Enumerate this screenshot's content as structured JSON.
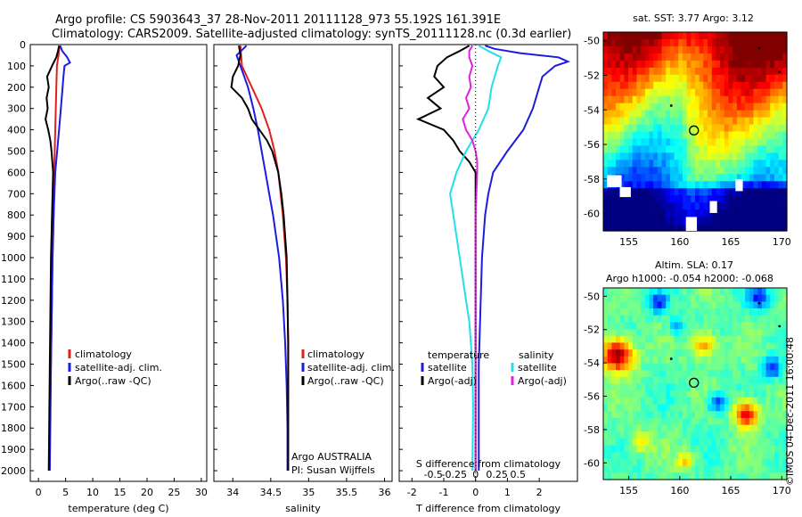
{
  "header": {
    "line1": "Argo profile: CS 5903643_37 28-Nov-2011 20111128_973 55.192S 161.391E",
    "line2": "Climatology: CARS2009. Satellite-adjusted climatology: synTS_20111128.nc (0.3d earlier)"
  },
  "colors": {
    "climatology": "#e0201c",
    "satellite": "#1c1ce0",
    "argo": "#000000",
    "salinity_sat": "#20e0e8",
    "salinity_argo": "#e020e0",
    "temp_argo": "#000000"
  },
  "chart_data": [
    {
      "type": "line",
      "id": "temperature",
      "xlabel": "temperature (deg C)",
      "ylabel": "",
      "xlim": [
        -1.5,
        31
      ],
      "ylim": [
        2050,
        0
      ],
      "xticks": [
        0,
        5,
        10,
        15,
        20,
        25,
        30
      ],
      "yticks": [
        0,
        100,
        200,
        300,
        400,
        500,
        600,
        700,
        800,
        900,
        1000,
        1100,
        1200,
        1300,
        1400,
        1500,
        1600,
        1700,
        1800,
        1900,
        2000
      ],
      "legend": [
        "climatology",
        "satellite-adj. clim.",
        "Argo(..raw -QC)"
      ],
      "series": [
        {
          "name": "climatology",
          "color": "#e0201c",
          "depth": [
            5,
            50,
            100,
            200,
            400,
            600,
            800,
            1000,
            1500,
            2000
          ],
          "values": [
            3.9,
            3.7,
            3.4,
            3.3,
            3.1,
            2.9,
            2.8,
            2.6,
            2.3,
            2.0
          ]
        },
        {
          "name": "satellite-adj. clim.",
          "color": "#1c1ce0",
          "depth": [
            5,
            30,
            60,
            85,
            100,
            150,
            250,
            400,
            600,
            800,
            1000,
            1500,
            2000
          ],
          "values": [
            4.0,
            4.4,
            5.3,
            5.8,
            4.8,
            4.6,
            4.3,
            3.8,
            3.1,
            2.8,
            2.6,
            2.3,
            2.1
          ]
        },
        {
          "name": "Argo(..raw -QC)",
          "color": "#000000",
          "depth": [
            5,
            30,
            60,
            100,
            150,
            200,
            250,
            300,
            350,
            400,
            450,
            500,
            600,
            800,
            1000,
            1500,
            2000
          ],
          "values": [
            3.8,
            3.6,
            3.3,
            2.5,
            1.6,
            1.9,
            1.5,
            1.7,
            1.3,
            1.8,
            2.2,
            2.4,
            2.7,
            2.5,
            2.3,
            2.1,
            1.9
          ]
        }
      ]
    },
    {
      "type": "line",
      "id": "salinity",
      "xlabel": "salinity",
      "xlim": [
        33.75,
        36.1
      ],
      "ylim": [
        2050,
        0
      ],
      "xticks": [
        34,
        34.5,
        35,
        35.5,
        36
      ],
      "legend": [
        "climatology",
        "satellite-adj. clim.",
        "Argo(..raw -QC)"
      ],
      "annotation": [
        "Argo AUSTRALIA",
        "PI: Susan Wijffels"
      ],
      "series": [
        {
          "name": "climatology",
          "color": "#e0201c",
          "depth": [
            5,
            100,
            200,
            300,
            400,
            500,
            600,
            700,
            800,
            900,
            1000,
            1200,
            1400,
            1600,
            1800,
            2000
          ],
          "values": [
            34.1,
            34.12,
            34.25,
            34.38,
            34.48,
            34.55,
            34.6,
            34.63,
            34.66,
            34.68,
            34.7,
            34.72,
            34.73,
            34.73,
            34.73,
            34.73
          ]
        },
        {
          "name": "satellite-adj. clim.",
          "color": "#1c1ce0",
          "depth": [
            5,
            50,
            100,
            200,
            300,
            400,
            500,
            600,
            700,
            800,
            900,
            1000,
            1200,
            1400,
            1600,
            1800,
            2000
          ],
          "values": [
            34.18,
            34.05,
            34.1,
            34.2,
            34.27,
            34.33,
            34.38,
            34.43,
            34.48,
            34.53,
            34.57,
            34.61,
            34.66,
            34.69,
            34.71,
            34.72,
            34.72
          ]
        },
        {
          "name": "Argo(..raw -QC)",
          "color": "#000000",
          "depth": [
            5,
            50,
            100,
            150,
            200,
            250,
            300,
            350,
            400,
            450,
            500,
            600,
            700,
            800,
            900,
            1000,
            1200,
            1400,
            1600,
            1800,
            2000
          ],
          "values": [
            34.08,
            34.1,
            34.07,
            34.0,
            33.98,
            34.12,
            34.2,
            34.25,
            34.35,
            34.45,
            34.52,
            34.6,
            34.64,
            34.67,
            34.69,
            34.71,
            34.72,
            34.73,
            34.73,
            34.73,
            34.73
          ]
        }
      ]
    },
    {
      "type": "line",
      "id": "difference",
      "xlabel_top": "S difference from climatology",
      "xlabel": "T difference from climatology",
      "xlim": [
        -2.4,
        3.2
      ],
      "ylim": [
        2050,
        0
      ],
      "xticks": [
        -2,
        -1,
        0,
        1,
        2
      ],
      "xticks_top_labels": [
        "-0.5",
        "-0.25",
        "0",
        "0.25",
        "0.5"
      ],
      "xticks_top_values": [
        -1.33,
        -0.67,
        0,
        0.67,
        1.33
      ],
      "legend_headers": [
        "temperature",
        "salinity"
      ],
      "legend_left": [
        "satellite",
        "Argo(-adj)"
      ],
      "legend_right": [
        "satellite",
        "Argo(-adj)"
      ],
      "series": [
        {
          "name": "temperature satellite",
          "color": "#1c1ce0",
          "depth": [
            5,
            20,
            40,
            60,
            80,
            100,
            150,
            200,
            300,
            400,
            500,
            600,
            700,
            800,
            1000,
            1500,
            2000
          ],
          "values": [
            0.3,
            0.6,
            1.4,
            2.6,
            2.9,
            2.5,
            2.1,
            2.0,
            1.8,
            1.5,
            1.0,
            0.55,
            0.4,
            0.3,
            0.2,
            0.1,
            0.1
          ]
        },
        {
          "name": "temperature Argo(-adj)",
          "color": "#000000",
          "depth": [
            5,
            30,
            60,
            100,
            150,
            200,
            250,
            300,
            350,
            400,
            450,
            500,
            550,
            600,
            800,
            1000,
            1500,
            2000
          ],
          "values": [
            -0.2,
            -0.5,
            -0.9,
            -1.2,
            -1.3,
            -1.0,
            -1.5,
            -1.1,
            -1.8,
            -1.0,
            -0.7,
            -0.5,
            -0.2,
            0.0,
            0.0,
            0.0,
            0.0,
            0.0
          ]
        },
        {
          "name": "salinity satellite",
          "color": "#20e0e8",
          "depth": [
            5,
            30,
            60,
            100,
            200,
            300,
            400,
            500,
            600,
            700,
            800,
            900,
            1000,
            1100,
            1200,
            1300,
            1400,
            1500,
            1700,
            2000
          ],
          "values": [
            0.1,
            0.4,
            0.8,
            0.7,
            0.5,
            0.4,
            0.1,
            -0.3,
            -0.6,
            -0.8,
            -0.7,
            -0.6,
            -0.5,
            -0.4,
            -0.3,
            -0.2,
            -0.15,
            -0.1,
            -0.08,
            -0.1
          ]
        },
        {
          "name": "salinity Argo(-adj)",
          "color": "#e020e0",
          "depth": [
            5,
            30,
            60,
            100,
            150,
            200,
            250,
            300,
            350,
            400,
            450,
            500,
            550,
            600,
            800,
            1000,
            1500,
            2000
          ],
          "values": [
            -0.1,
            -0.2,
            -0.2,
            -0.1,
            -0.2,
            -0.15,
            -0.3,
            -0.2,
            -0.4,
            -0.3,
            -0.1,
            0.0,
            0.05,
            0.05,
            0.0,
            0.0,
            0.0,
            0.0
          ]
        }
      ]
    },
    {
      "type": "heatmap",
      "id": "sst_map",
      "title": "sat. SST: 3.77 Argo: 3.12",
      "xticks": [
        155,
        160,
        165,
        170
      ],
      "yticks": [
        -50,
        -52,
        -54,
        -56,
        -58,
        -60
      ],
      "xlim": [
        152.5,
        170.5
      ],
      "ylim": [
        -61,
        -49.5
      ],
      "argo_position": [
        161.39,
        -55.19
      ]
    },
    {
      "type": "heatmap",
      "id": "sla_map",
      "title_line1": "Altim. SLA: 0.17",
      "title_line2": "Argo h1000: -0.054 h2000: -0.068",
      "xticks": [
        155,
        160,
        165,
        170
      ],
      "yticks": [
        -50,
        -52,
        -54,
        -56,
        -58,
        -60
      ],
      "xlim": [
        152.5,
        170.5
      ],
      "ylim": [
        -61,
        -49.5
      ],
      "argo_position": [
        161.39,
        -55.19
      ]
    }
  ],
  "footer": {
    "stamp": "©IMOS 04-Dec-2011 16:00:48"
  }
}
